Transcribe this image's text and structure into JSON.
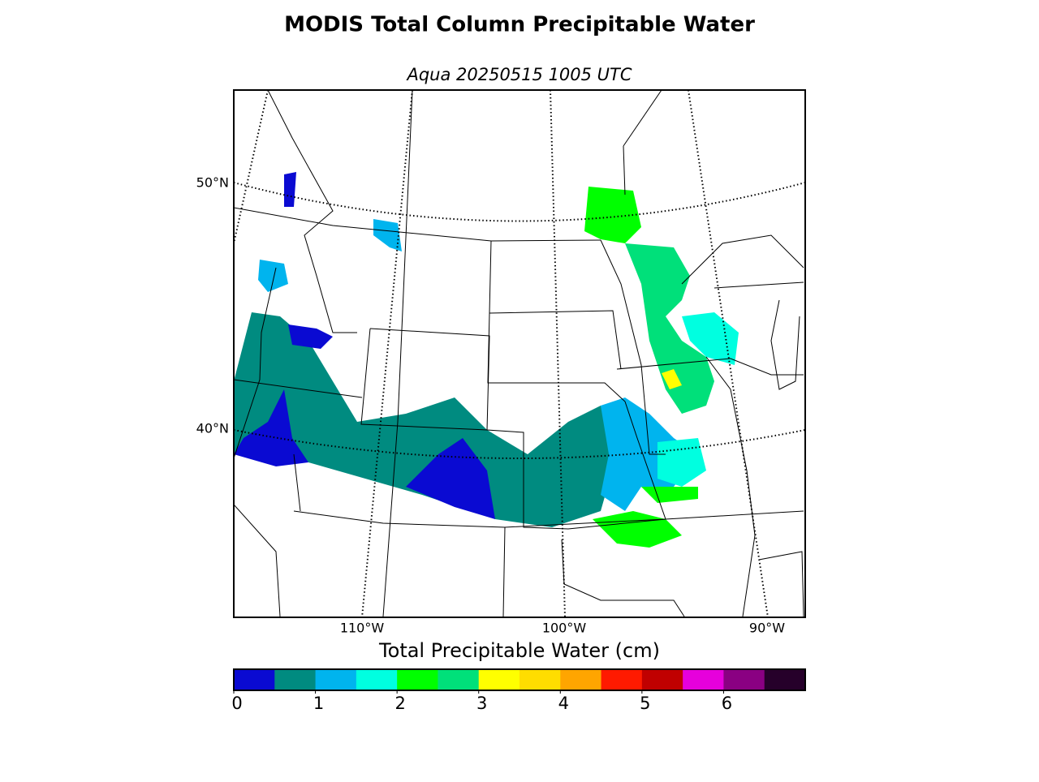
{
  "title": "MODIS Total Column Precipitable Water",
  "subtitle": "Aqua 20250515 1005 UTC",
  "map": {
    "lat_labels": [
      "50°N",
      "40°N"
    ],
    "lon_labels": [
      "110°W",
      "100°W",
      "90°W"
    ]
  },
  "colorbar": {
    "label": "Total Precipitable Water (cm)",
    "range": [
      0,
      7
    ],
    "ticks": [
      0,
      1,
      2,
      3,
      4,
      5,
      6
    ],
    "colors": [
      "#0a0ad2",
      "#008b80",
      "#00b4ee",
      "#00ffe0",
      "#00ff00",
      "#00e07a",
      "#ffff00",
      "#ffdd00",
      "#ffa500",
      "#ff1a00",
      "#c00000",
      "#e600dc",
      "#8a0082",
      "#26002a"
    ]
  }
}
